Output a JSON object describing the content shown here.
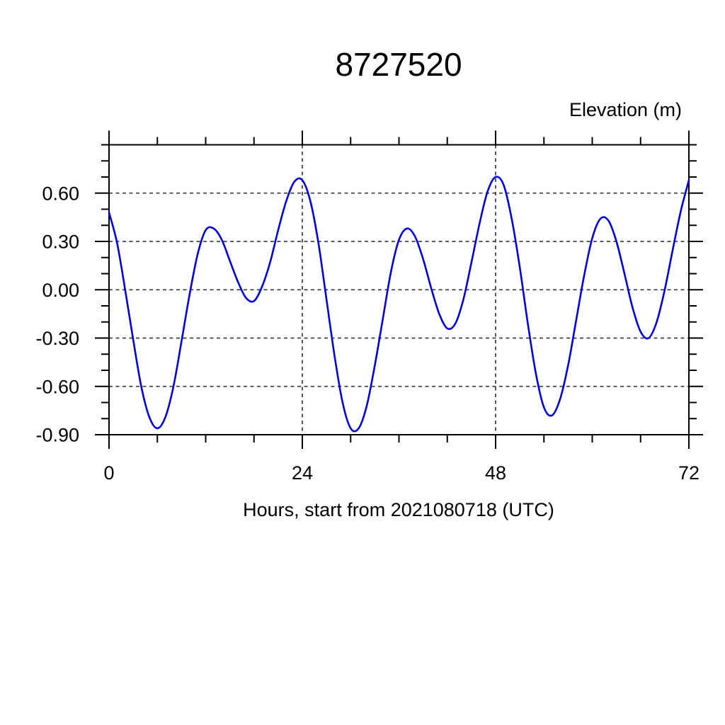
{
  "page": {
    "background_color": "#ffffff"
  },
  "chart_data": {
    "type": "line",
    "title": "8727520",
    "ylabel": "Elevation (m)",
    "xlabel": "Hours, start from 2021080718 (UTC)",
    "xlim": [
      0,
      72
    ],
    "ylim": [
      -0.9,
      0.9
    ],
    "x_major_ticks": [
      0,
      24,
      48,
      72
    ],
    "x_tick_labels": [
      "0",
      "24",
      "48",
      "72"
    ],
    "x_minor_step": 6,
    "y_major_ticks": [
      0.6,
      0.3,
      0.0,
      -0.3,
      -0.6,
      -0.9
    ],
    "y_tick_labels": [
      "0.60",
      "0.30",
      "0.00",
      "-0.30",
      "-0.60",
      "-0.90"
    ],
    "y_minor_step": 0.1,
    "grid_x": [
      24,
      48
    ],
    "grid_y": [
      0.6,
      0.3,
      0.0,
      -0.3,
      -0.6,
      -0.9
    ],
    "grid_style": "dashed",
    "grid_on": true,
    "legend_position": "none",
    "line_color": "#0000dd",
    "grid_color": "#444444",
    "frame_color": "#000000",
    "series": [
      {
        "name": "elevation",
        "x_start_hour": 0,
        "x_step_hours": 1,
        "values": [
          0.48,
          0.29,
          0.0,
          -0.31,
          -0.6,
          -0.79,
          -0.86,
          -0.79,
          -0.6,
          -0.32,
          -0.03,
          0.22,
          0.37,
          0.38,
          0.31,
          0.18,
          0.05,
          -0.05,
          -0.07,
          0.02,
          0.17,
          0.37,
          0.55,
          0.67,
          0.68,
          0.55,
          0.29,
          -0.06,
          -0.41,
          -0.7,
          -0.86,
          -0.86,
          -0.72,
          -0.47,
          -0.18,
          0.11,
          0.31,
          0.38,
          0.33,
          0.19,
          0.01,
          -0.15,
          -0.24,
          -0.21,
          -0.06,
          0.17,
          0.41,
          0.61,
          0.7,
          0.65,
          0.44,
          0.14,
          -0.21,
          -0.52,
          -0.73,
          -0.78,
          -0.68,
          -0.47,
          -0.19,
          0.09,
          0.32,
          0.44,
          0.43,
          0.3,
          0.1,
          -0.11,
          -0.26,
          -0.3,
          -0.2,
          0.0,
          0.25,
          0.49,
          0.68
        ]
      }
    ]
  }
}
